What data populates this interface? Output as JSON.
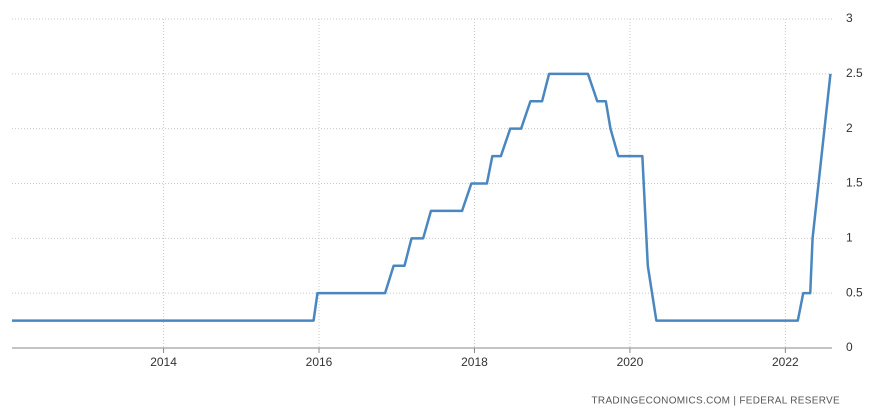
{
  "chart_data": {
    "type": "line",
    "source": "TRADINGECONOMICS.COM  |  FEDERAL RESERVE",
    "x": [
      2012.05,
      2015.93,
      2015.98,
      2016.85,
      2016.96,
      2017.1,
      2017.19,
      2017.34,
      2017.44,
      2017.84,
      2017.96,
      2018.16,
      2018.23,
      2018.34,
      2018.46,
      2018.6,
      2018.72,
      2018.87,
      2018.96,
      2019.46,
      2019.58,
      2019.69,
      2019.75,
      2019.85,
      2020.16,
      2020.23,
      2020.34,
      2022.16,
      2022.23,
      2022.32,
      2022.35,
      2022.58
    ],
    "series": [
      {
        "color": "#4a86c0",
        "values": [
          0.25,
          0.25,
          0.5,
          0.5,
          0.75,
          0.75,
          1.0,
          1.0,
          1.25,
          1.25,
          1.5,
          1.5,
          1.75,
          1.75,
          2.0,
          2.0,
          2.25,
          2.25,
          2.5,
          2.5,
          2.25,
          2.25,
          2.0,
          1.75,
          1.75,
          0.75,
          0.25,
          0.25,
          0.5,
          0.5,
          1.0,
          2.5
        ]
      }
    ],
    "xlim": [
      2012.05,
      2022.6
    ],
    "xticks": [
      2014,
      2016,
      2018,
      2020,
      2022
    ],
    "ylim": [
      0,
      3
    ],
    "yticks": [
      0,
      0.5,
      1,
      1.5,
      2,
      2.5,
      3
    ],
    "grid": true
  }
}
